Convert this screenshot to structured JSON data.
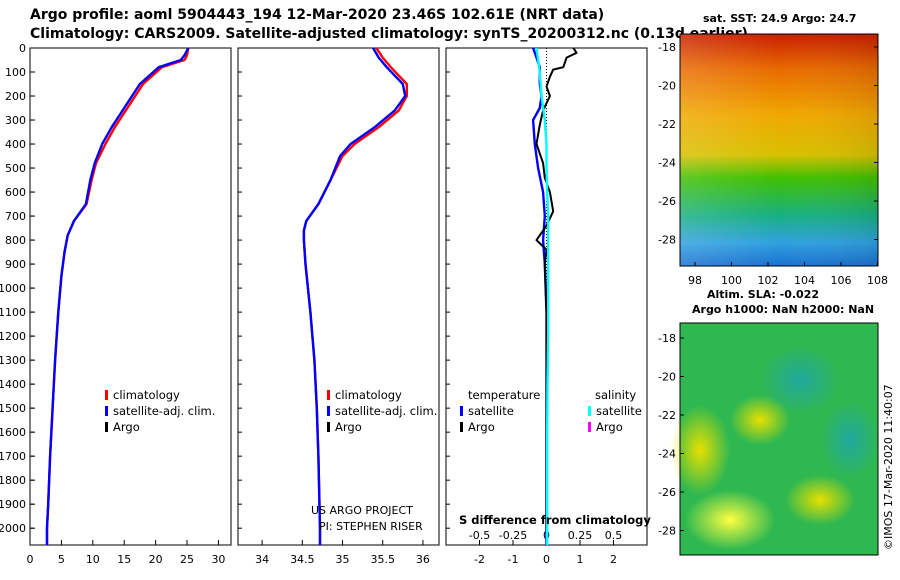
{
  "title_line1": "Argo profile: aoml 5904443_194 12-Mar-2020 23.46S 102.61E (NRT data)",
  "title_line2": "Climatology: CARS2009. Satellite-adjusted climatology: synTS_20200312.nc (0.13d earlier)",
  "colors": {
    "climatology": "#ff0000",
    "satellite": "#0000ff",
    "argo": "#000000",
    "temp_diff_sat": "#0000ff",
    "sal_diff_sat": "#00ffff",
    "sal_argo": "#ff00ff"
  },
  "chart_data": [
    {
      "type": "line",
      "name": "temperature",
      "xlim": [
        0,
        32
      ],
      "ylim": [
        0,
        2070
      ],
      "xticks": [
        0,
        5,
        10,
        15,
        20,
        25,
        30
      ],
      "yticks": [
        0,
        100,
        200,
        300,
        400,
        500,
        600,
        700,
        800,
        900,
        1000,
        1100,
        1200,
        1300,
        1400,
        1500,
        1600,
        1700,
        1800,
        1900,
        2000
      ],
      "legend": [
        "climatology",
        "satellite-adj. clim.",
        "Argo"
      ],
      "series": [
        {
          "name": "climatology",
          "points": [
            [
              25.2,
              0
            ],
            [
              25.0,
              30
            ],
            [
              24.6,
              50
            ],
            [
              21,
              80
            ],
            [
              18,
              150
            ],
            [
              15.5,
              250
            ],
            [
              13.5,
              330
            ],
            [
              12,
              400
            ],
            [
              10.5,
              480
            ],
            [
              9.8,
              550
            ],
            [
              9,
              650
            ],
            [
              7,
              720
            ],
            [
              6,
              780
            ],
            [
              5.5,
              850
            ],
            [
              5,
              950
            ],
            [
              4.5,
              1100
            ],
            [
              4,
              1300
            ],
            [
              3.6,
              1500
            ],
            [
              3.2,
              1700
            ],
            [
              2.9,
              1900
            ],
            [
              2.7,
              2000
            ],
            [
              2.7,
              2070
            ]
          ]
        },
        {
          "name": "satellite-adj. clim.",
          "points": [
            [
              25.2,
              0
            ],
            [
              24.6,
              30
            ],
            [
              24.0,
              50
            ],
            [
              20.5,
              80
            ],
            [
              17.5,
              150
            ],
            [
              15,
              250
            ],
            [
              13,
              330
            ],
            [
              11.5,
              400
            ],
            [
              10.3,
              480
            ],
            [
              9.6,
              550
            ],
            [
              8.9,
              650
            ],
            [
              7,
              720
            ],
            [
              6,
              780
            ],
            [
              5.5,
              850
            ],
            [
              5,
              950
            ],
            [
              4.5,
              1100
            ],
            [
              4,
              1300
            ],
            [
              3.6,
              1500
            ],
            [
              3.2,
              1700
            ],
            [
              2.9,
              1900
            ],
            [
              2.7,
              2000
            ],
            [
              2.7,
              2070
            ]
          ]
        }
      ]
    },
    {
      "type": "line",
      "name": "salinity",
      "xlim": [
        33.7,
        36.2
      ],
      "ylim": [
        0,
        2070
      ],
      "xticks": [
        34,
        34.5,
        35,
        35.5,
        36
      ],
      "legend": [
        "climatology",
        "satellite-adj. clim.",
        "Argo"
      ],
      "credit": [
        "US ARGO PROJECT",
        "PI: STEPHEN RISER"
      ],
      "series": [
        {
          "name": "climatology",
          "points": [
            [
              35.42,
              0
            ],
            [
              35.5,
              40
            ],
            [
              35.6,
              80
            ],
            [
              35.8,
              150
            ],
            [
              35.8,
              200
            ],
            [
              35.7,
              260
            ],
            [
              35.45,
              330
            ],
            [
              35.15,
              400
            ],
            [
              35.0,
              450
            ],
            [
              34.85,
              550
            ],
            [
              34.7,
              650
            ],
            [
              34.55,
              720
            ],
            [
              34.52,
              760
            ],
            [
              34.52,
              800
            ],
            [
              34.54,
              900
            ],
            [
              34.6,
              1100
            ],
            [
              34.65,
              1300
            ],
            [
              34.68,
              1500
            ],
            [
              34.7,
              1700
            ],
            [
              34.72,
              2000
            ],
            [
              34.72,
              2070
            ]
          ]
        },
        {
          "name": "satellite-adj. clim.",
          "points": [
            [
              35.38,
              0
            ],
            [
              35.45,
              40
            ],
            [
              35.55,
              80
            ],
            [
              35.75,
              150
            ],
            [
              35.78,
              200
            ],
            [
              35.65,
              260
            ],
            [
              35.4,
              330
            ],
            [
              35.1,
              400
            ],
            [
              34.97,
              450
            ],
            [
              34.85,
              550
            ],
            [
              34.7,
              650
            ],
            [
              34.55,
              720
            ],
            [
              34.52,
              760
            ],
            [
              34.52,
              800
            ],
            [
              34.54,
              900
            ],
            [
              34.6,
              1100
            ],
            [
              34.65,
              1300
            ],
            [
              34.68,
              1500
            ],
            [
              34.7,
              1700
            ],
            [
              34.72,
              2000
            ],
            [
              34.72,
              2070
            ]
          ]
        }
      ]
    },
    {
      "type": "line",
      "name": "difference from climatology",
      "xlim": [
        -3,
        3
      ],
      "ylim": [
        0,
        2070
      ],
      "xticks": [
        -2,
        -1,
        0,
        1,
        2
      ],
      "xticks2": [
        -0.5,
        -0.25,
        0,
        0.25,
        0.5
      ],
      "xticks2_labels": [
        "-0.5",
        "-0.25",
        "0",
        "0.25",
        "0.5"
      ],
      "xlabel": "S difference from climatology",
      "legend_titles": [
        "temperature",
        "salinity"
      ],
      "legend_left": [
        "satellite",
        "Argo"
      ],
      "legend_right": [
        "satellite",
        "Argo"
      ],
      "series": [
        {
          "name": "temperature satellite",
          "points": [
            [
              -0.4,
              0
            ],
            [
              -0.3,
              40
            ],
            [
              -0.2,
              80
            ],
            [
              -0.2,
              150
            ],
            [
              -0.15,
              200
            ],
            [
              -0.2,
              250
            ],
            [
              -0.4,
              300
            ],
            [
              -0.35,
              400
            ],
            [
              -0.25,
              500
            ],
            [
              -0.1,
              600
            ],
            [
              -0.05,
              700
            ],
            [
              -0.1,
              800
            ],
            [
              -0.05,
              900
            ],
            [
              0,
              1100
            ],
            [
              0,
              1300
            ],
            [
              0,
              1500
            ],
            [
              0,
              1800
            ],
            [
              0,
              2000
            ],
            [
              0,
              2070
            ]
          ]
        },
        {
          "name": "temperature Argo",
          "points": [
            [
              0.8,
              0
            ],
            [
              0.9,
              20
            ],
            [
              0.6,
              40
            ],
            [
              0.5,
              80
            ],
            [
              0.2,
              90
            ],
            [
              0.1,
              120
            ],
            [
              0,
              160
            ],
            [
              0.1,
              200
            ],
            [
              -0.1,
              260
            ],
            [
              -0.2,
              320
            ],
            [
              -0.3,
              400
            ],
            [
              -0.1,
              480
            ],
            [
              -0.05,
              540
            ],
            [
              0.1,
              600
            ],
            [
              0.2,
              680
            ],
            [
              0,
              740
            ],
            [
              -0.3,
              800
            ],
            [
              0,
              840
            ],
            [
              -0.05,
              900
            ],
            [
              0,
              1100
            ],
            [
              0,
              1300
            ],
            [
              0,
              1500
            ],
            [
              0,
              1800
            ],
            [
              0,
              2000
            ]
          ]
        },
        {
          "name": "salinity satellite",
          "points": [
            [
              -0.3,
              0
            ],
            [
              -0.2,
              100
            ],
            [
              -0.15,
              200
            ],
            [
              -0.05,
              300
            ],
            [
              0,
              400
            ],
            [
              0,
              500
            ],
            [
              0.02,
              600
            ],
            [
              0.05,
              700
            ],
            [
              0.05,
              800
            ],
            [
              0.05,
              1000
            ],
            [
              0.05,
              1200
            ],
            [
              0.03,
              1400
            ],
            [
              0.02,
              1600
            ],
            [
              0.02,
              1800
            ],
            [
              0.02,
              2000
            ],
            [
              0.02,
              2070
            ]
          ]
        }
      ]
    }
  ],
  "map_top": {
    "title": "sat. SST: 24.9 Argo: 24.7",
    "yticks": [
      "-18",
      "-20",
      "-22",
      "-24",
      "-26",
      "-28"
    ],
    "xticks": [
      "98",
      "100",
      "102",
      "104",
      "106",
      "108"
    ]
  },
  "map_bottom": {
    "title_line1": "Altim. SLA: -0.022",
    "title_line2": "Argo h1000: NaN h2000: NaN",
    "yticks": [
      "-18",
      "-20",
      "-22",
      "-24",
      "-26",
      "-28"
    ],
    "credit": "©IMOS 17-Mar-2020 11:40:07"
  }
}
